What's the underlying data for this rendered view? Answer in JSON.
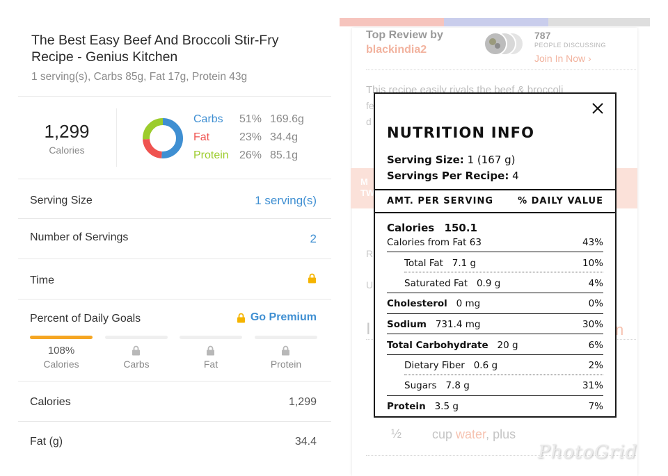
{
  "left": {
    "title": "The Best Easy Beef And Broccoli Stir-Fry Recipe - Genius Kitchen",
    "subtitle": "1 serving(s), Carbs 85g, Fat 17g, Protein 43g",
    "calories_value": "1,299",
    "calories_label": "Calories",
    "macros": [
      {
        "name": "Carbs",
        "pct": "51%",
        "grams": "169.6g",
        "color": "#3f8fd2",
        "fraction": 0.51
      },
      {
        "name": "Fat",
        "pct": "23%",
        "grams": "34.4g",
        "color": "#ef5350",
        "fraction": 0.23
      },
      {
        "name": "Protein",
        "pct": "26%",
        "grams": "85.1g",
        "color": "#9ccc2c",
        "fraction": 0.26
      }
    ],
    "serving_size_label": "Serving Size",
    "serving_size_value": "1 serving(s)",
    "servings_label": "Number of Servings",
    "servings_value": "2",
    "time_label": "Time",
    "goals_label": "Percent of Daily Goals",
    "go_premium": "Go Premium",
    "goals": [
      {
        "value": "108%",
        "label": "Calories",
        "locked": false,
        "fill": 1.0
      },
      {
        "value": "",
        "label": "Carbs",
        "locked": true,
        "fill": 0
      },
      {
        "value": "",
        "label": "Fat",
        "locked": true,
        "fill": 0
      },
      {
        "value": "",
        "label": "Protein",
        "locked": true,
        "fill": 0
      }
    ],
    "calories_row_label": "Calories",
    "calories_row_value": "1,299",
    "fat_row_label": "Fat (g)",
    "fat_row_value": "34.4",
    "accent": "#3f8fd2",
    "goal_color": "#f5a623"
  },
  "right_bg": {
    "review_label": "Top Review by",
    "review_user": "blackindia2",
    "discuss_count": "787",
    "discuss_label": "PEOPLE DISCUSSING",
    "join_label": "Join In Now",
    "review_text": "This recipe easily rivals the beef & broccoli",
    "frag_f": "fe",
    "frag_d": "d",
    "banner_l1": "M",
    "banner_l2": "TW",
    "frag_r": "R",
    "frag_u": "U",
    "frag_i": "I",
    "frag_n": "n",
    "ing_qty": "½",
    "ing_cup": "cup ",
    "ing_water": "water",
    "ing_plus": ", plus",
    "watermark": "PhotoGrid"
  },
  "modal": {
    "title": "NUTRITION INFO",
    "serving_size_label": "Serving Size:",
    "serving_size_value": "1 (167 g)",
    "servings_label": "Servings Per Recipe:",
    "servings_value": "4",
    "amt_header": "AMT. PER SERVING",
    "dv_header": "% DAILY VALUE",
    "calories_label": "Calories",
    "calories_value": "150.1",
    "cal_fat_label": "Calories from Fat 63",
    "cal_fat_dv": "43%",
    "rows": [
      {
        "name": "Total Fat",
        "amount": "7.1 g",
        "dv": "10%"
      },
      {
        "name": "Saturated Fat",
        "amount": "0.9 g",
        "dv": "4%"
      },
      {
        "name": "Cholesterol",
        "amount": "0 mg",
        "dv": "0%"
      },
      {
        "name": "Sodium",
        "amount": "731.4 mg",
        "dv": "30%"
      },
      {
        "name": "Total Carbohydrate",
        "amount": "20 g",
        "dv": "6%"
      },
      {
        "name": "Dietary Fiber",
        "amount": "0.6 g",
        "dv": "2%"
      },
      {
        "name": "Sugars",
        "amount": "7.8 g",
        "dv": "31%"
      },
      {
        "name": "Protein",
        "amount": "3.5 g",
        "dv": "7%"
      }
    ]
  }
}
